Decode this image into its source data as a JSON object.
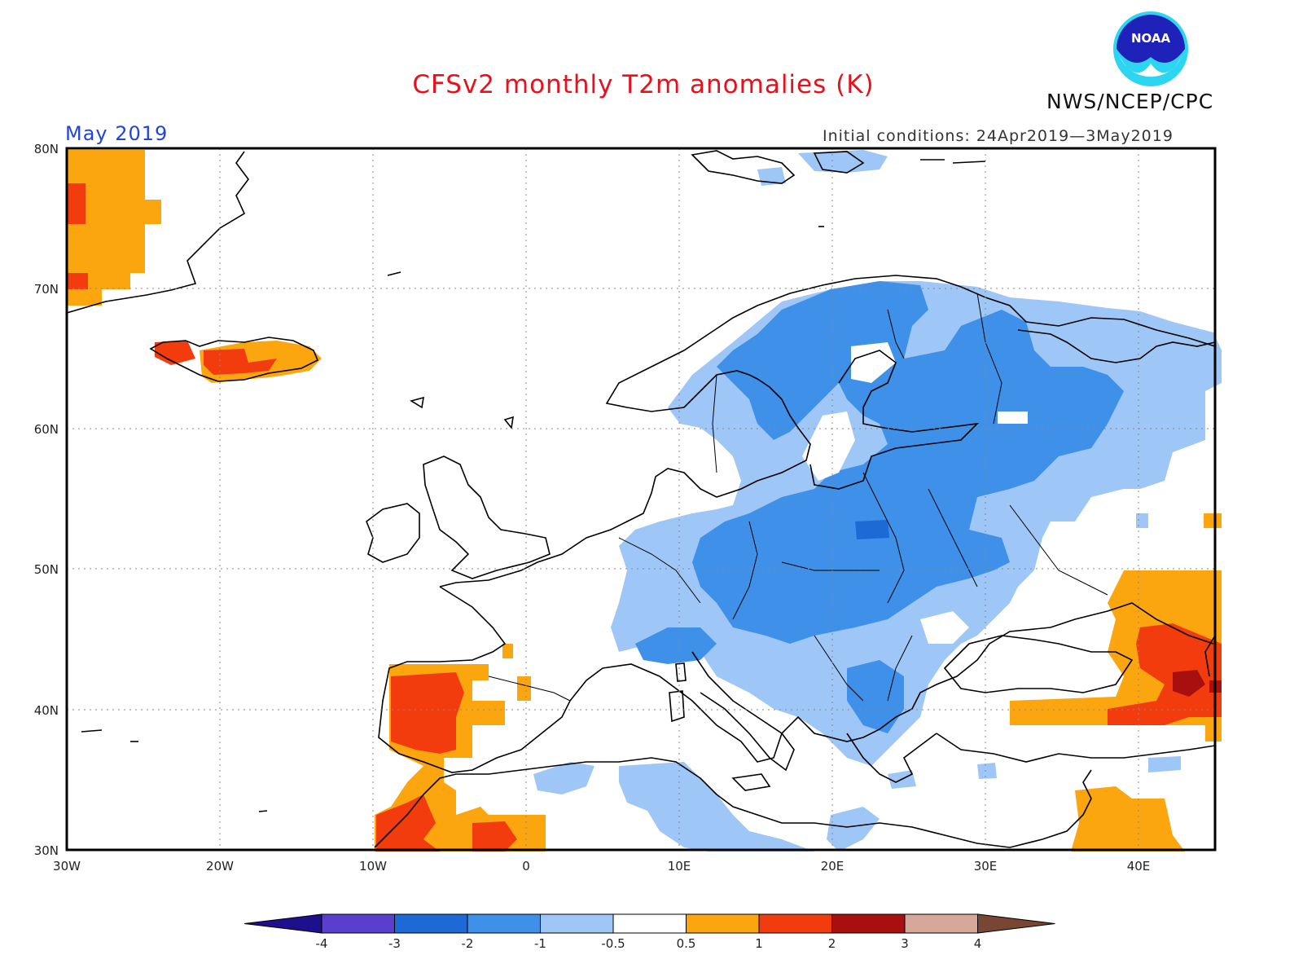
{
  "header": {
    "title": "CFSv2 monthly T2m anomalies (K)",
    "month": "May 2019",
    "initial_conditions": "Initial conditions: 24Apr2019—3May2019",
    "agency": "NWS/NCEP/CPC",
    "logo_text": "NOAA"
  },
  "map": {
    "lat_labels": [
      "80N",
      "70N",
      "60N",
      "50N",
      "40N",
      "30N"
    ],
    "lon_labels": [
      "30W",
      "20W",
      "10W",
      "0",
      "10E",
      "20E",
      "30E",
      "40E"
    ],
    "extent": {
      "lon_min": -30,
      "lon_max": 45,
      "lat_min": 30,
      "lat_max": 80
    },
    "gridlines": "dotted"
  },
  "legend": {
    "tick_labels": [
      "-4",
      "-3",
      "-2",
      "-1",
      "-0.5",
      "0.5",
      "1",
      "2",
      "3",
      "4"
    ],
    "colors": [
      "#1e0f8c",
      "#5a3fcf",
      "#1d6ad6",
      "#3e90e8",
      "#9ec6f6",
      "#ffffff",
      "#fba50f",
      "#f23c0e",
      "#a80f0f",
      "#d6a89a",
      "#7a4634"
    ]
  }
}
